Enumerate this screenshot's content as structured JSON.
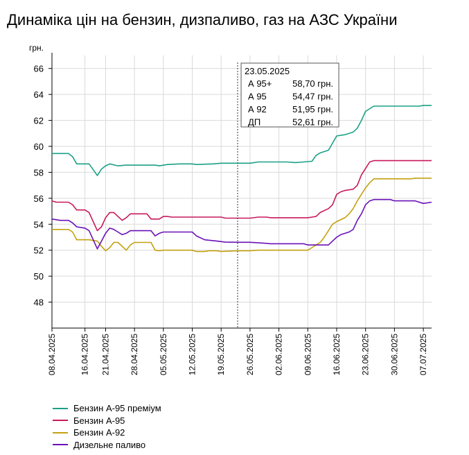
{
  "chart_data": {
    "type": "line",
    "title": "Динаміка цін на бензин, дизпаливо, газ на АЗС України",
    "ylabel": "грн.",
    "ylim": [
      46,
      67
    ],
    "yticks": [
      48,
      50,
      52,
      54,
      56,
      58,
      60,
      62,
      64,
      66
    ],
    "grid": true,
    "x_start": "08.04.2025",
    "x_end": "09.07.2025",
    "xticks": [
      "08.04.2025",
      "16.04.2025",
      "21.04.2025",
      "28.04.2025",
      "05.05.2025",
      "12.05.2025",
      "19.05.2025",
      "26.05.2025",
      "02.06.2025",
      "09.06.2025",
      "16.06.2025",
      "23.06.2025",
      "30.06.2025",
      "07.07.2025"
    ],
    "series": [
      {
        "name": "Бензин А-95 преміум",
        "color": "#1aa085",
        "points": [
          [
            "08.04.2025",
            59.45
          ],
          [
            "12.04.2025",
            59.45
          ],
          [
            "13.04.2025",
            59.2
          ],
          [
            "14.04.2025",
            58.65
          ],
          [
            "17.04.2025",
            58.65
          ],
          [
            "19.04.2025",
            57.75
          ],
          [
            "20.04.2025",
            58.25
          ],
          [
            "21.04.2025",
            58.5
          ],
          [
            "22.04.2025",
            58.65
          ],
          [
            "24.04.2025",
            58.5
          ],
          [
            "26.04.2025",
            58.55
          ],
          [
            "03.05.2025",
            58.55
          ],
          [
            "04.05.2025",
            58.5
          ],
          [
            "06.05.2025",
            58.6
          ],
          [
            "09.05.2025",
            58.65
          ],
          [
            "12.05.2025",
            58.65
          ],
          [
            "13.05.2025",
            58.6
          ],
          [
            "17.05.2025",
            58.65
          ],
          [
            "19.05.2025",
            58.7
          ],
          [
            "23.05.2025",
            58.7
          ],
          [
            "26.05.2025",
            58.7
          ],
          [
            "28.05.2025",
            58.8
          ],
          [
            "04.06.2025",
            58.8
          ],
          [
            "06.06.2025",
            58.75
          ],
          [
            "08.06.2025",
            58.8
          ],
          [
            "10.06.2025",
            58.85
          ],
          [
            "11.06.2025",
            59.3
          ],
          [
            "12.06.2025",
            59.5
          ],
          [
            "14.06.2025",
            59.7
          ],
          [
            "16.06.2025",
            60.8
          ],
          [
            "18.06.2025",
            60.9
          ],
          [
            "20.06.2025",
            61.1
          ],
          [
            "21.06.2025",
            61.4
          ],
          [
            "22.06.2025",
            62.0
          ],
          [
            "23.06.2025",
            62.7
          ],
          [
            "25.06.2025",
            63.1
          ],
          [
            "06.07.2025",
            63.1
          ],
          [
            "07.07.2025",
            63.15
          ],
          [
            "09.07.2025",
            63.15
          ]
        ]
      },
      {
        "name": "Бензин А-95",
        "color": "#c8185a",
        "points": [
          [
            "08.04.2025",
            55.8
          ],
          [
            "09.04.2025",
            55.7
          ],
          [
            "12.04.2025",
            55.7
          ],
          [
            "13.04.2025",
            55.5
          ],
          [
            "14.04.2025",
            55.1
          ],
          [
            "16.04.2025",
            55.1
          ],
          [
            "17.04.2025",
            54.9
          ],
          [
            "19.04.2025",
            53.5
          ],
          [
            "20.04.2025",
            53.8
          ],
          [
            "21.04.2025",
            54.5
          ],
          [
            "22.04.2025",
            54.9
          ],
          [
            "23.04.2025",
            54.9
          ],
          [
            "24.04.2025",
            54.6
          ],
          [
            "25.04.2025",
            54.3
          ],
          [
            "26.04.2025",
            54.5
          ],
          [
            "27.04.2025",
            54.8
          ],
          [
            "01.05.2025",
            54.8
          ],
          [
            "02.05.2025",
            54.4
          ],
          [
            "04.05.2025",
            54.4
          ],
          [
            "05.05.2025",
            54.6
          ],
          [
            "06.05.2025",
            54.6
          ],
          [
            "07.05.2025",
            54.55
          ],
          [
            "12.05.2025",
            54.55
          ],
          [
            "19.05.2025",
            54.55
          ],
          [
            "20.05.2025",
            54.47
          ],
          [
            "26.05.2025",
            54.47
          ],
          [
            "28.05.2025",
            54.55
          ],
          [
            "30.05.2025",
            54.55
          ],
          [
            "31.05.2025",
            54.5
          ],
          [
            "09.06.2025",
            54.5
          ],
          [
            "10.06.2025",
            54.55
          ],
          [
            "11.06.2025",
            54.6
          ],
          [
            "12.06.2025",
            54.9
          ],
          [
            "14.06.2025",
            55.2
          ],
          [
            "15.06.2025",
            55.5
          ],
          [
            "16.06.2025",
            56.3
          ],
          [
            "17.06.2025",
            56.5
          ],
          [
            "18.06.2025",
            56.6
          ],
          [
            "20.06.2025",
            56.7
          ],
          [
            "21.06.2025",
            57.0
          ],
          [
            "22.06.2025",
            57.8
          ],
          [
            "23.06.2025",
            58.3
          ],
          [
            "24.06.2025",
            58.8
          ],
          [
            "25.06.2025",
            58.9
          ],
          [
            "09.07.2025",
            58.9
          ]
        ]
      },
      {
        "name": "Бензин А-92",
        "color": "#c4a010",
        "points": [
          [
            "08.04.2025",
            53.6
          ],
          [
            "12.04.2025",
            53.6
          ],
          [
            "13.04.2025",
            53.4
          ],
          [
            "14.04.2025",
            52.8
          ],
          [
            "17.04.2025",
            52.8
          ],
          [
            "19.04.2025",
            52.7
          ],
          [
            "20.04.2025",
            52.3
          ],
          [
            "21.04.2025",
            51.95
          ],
          [
            "22.04.2025",
            52.2
          ],
          [
            "23.04.2025",
            52.6
          ],
          [
            "24.04.2025",
            52.6
          ],
          [
            "26.04.2025",
            52.0
          ],
          [
            "27.04.2025",
            52.4
          ],
          [
            "28.04.2025",
            52.6
          ],
          [
            "02.05.2025",
            52.6
          ],
          [
            "03.05.2025",
            52.0
          ],
          [
            "04.05.2025",
            51.95
          ],
          [
            "05.05.2025",
            52.0
          ],
          [
            "12.05.2025",
            52.0
          ],
          [
            "13.05.2025",
            51.9
          ],
          [
            "15.05.2025",
            51.9
          ],
          [
            "16.05.2025",
            51.95
          ],
          [
            "18.05.2025",
            51.95
          ],
          [
            "19.05.2025",
            51.9
          ],
          [
            "23.05.2025",
            51.95
          ],
          [
            "26.05.2025",
            51.95
          ],
          [
            "28.05.2025",
            52.0
          ],
          [
            "09.06.2025",
            52.0
          ],
          [
            "10.06.2025",
            52.2
          ],
          [
            "11.06.2025",
            52.4
          ],
          [
            "12.06.2025",
            52.6
          ],
          [
            "13.06.2025",
            53.0
          ],
          [
            "14.06.2025",
            53.5
          ],
          [
            "15.06.2025",
            54.0
          ],
          [
            "16.06.2025",
            54.2
          ],
          [
            "18.06.2025",
            54.5
          ],
          [
            "19.06.2025",
            54.8
          ],
          [
            "20.06.2025",
            55.2
          ],
          [
            "21.06.2025",
            55.8
          ],
          [
            "22.06.2025",
            56.3
          ],
          [
            "23.06.2025",
            56.8
          ],
          [
            "24.06.2025",
            57.2
          ],
          [
            "25.06.2025",
            57.5
          ],
          [
            "04.07.2025",
            57.5
          ],
          [
            "05.07.2025",
            57.55
          ],
          [
            "09.07.2025",
            57.55
          ]
        ]
      },
      {
        "name": "Дизельне паливо",
        "color": "#6a10b8",
        "points": [
          [
            "08.04.2025",
            54.4
          ],
          [
            "10.04.2025",
            54.3
          ],
          [
            "12.04.2025",
            54.3
          ],
          [
            "13.04.2025",
            54.1
          ],
          [
            "14.04.2025",
            53.8
          ],
          [
            "16.04.2025",
            53.7
          ],
          [
            "17.04.2025",
            53.5
          ],
          [
            "19.04.2025",
            52.1
          ],
          [
            "20.04.2025",
            52.7
          ],
          [
            "21.04.2025",
            53.3
          ],
          [
            "22.04.2025",
            53.7
          ],
          [
            "23.04.2025",
            53.6
          ],
          [
            "24.04.2025",
            53.4
          ],
          [
            "25.04.2025",
            53.2
          ],
          [
            "26.04.2025",
            53.3
          ],
          [
            "27.04.2025",
            53.5
          ],
          [
            "02.05.2025",
            53.5
          ],
          [
            "03.05.2025",
            53.1
          ],
          [
            "04.05.2025",
            53.3
          ],
          [
            "05.05.2025",
            53.4
          ],
          [
            "12.05.2025",
            53.4
          ],
          [
            "13.05.2025",
            53.1
          ],
          [
            "15.05.2025",
            52.8
          ],
          [
            "18.05.2025",
            52.7
          ],
          [
            "20.05.2025",
            52.62
          ],
          [
            "23.05.2025",
            52.61
          ],
          [
            "26.05.2025",
            52.61
          ],
          [
            "29.05.2025",
            52.55
          ],
          [
            "31.05.2025",
            52.5
          ],
          [
            "08.06.2025",
            52.5
          ],
          [
            "09.06.2025",
            52.4
          ],
          [
            "14.06.2025",
            52.4
          ],
          [
            "15.06.2025",
            52.7
          ],
          [
            "16.06.2025",
            53.0
          ],
          [
            "17.06.2025",
            53.2
          ],
          [
            "19.06.2025",
            53.4
          ],
          [
            "20.06.2025",
            53.6
          ],
          [
            "21.06.2025",
            54.3
          ],
          [
            "22.06.2025",
            54.8
          ],
          [
            "23.06.2025",
            55.5
          ],
          [
            "24.06.2025",
            55.8
          ],
          [
            "25.06.2025",
            55.9
          ],
          [
            "29.06.2025",
            55.9
          ],
          [
            "30.06.2025",
            55.8
          ],
          [
            "05.07.2025",
            55.8
          ],
          [
            "07.07.2025",
            55.6
          ],
          [
            "09.07.2025",
            55.7
          ]
        ]
      }
    ],
    "tooltip": {
      "date": "23.05.2025",
      "rows": [
        {
          "label": "А 95+",
          "value": "58,70 грн."
        },
        {
          "label": "А 95",
          "value": "54,47 грн."
        },
        {
          "label": "А 92",
          "value": "51,95 грн."
        },
        {
          "label": "ДП",
          "value": "52,61 грн."
        }
      ]
    }
  }
}
